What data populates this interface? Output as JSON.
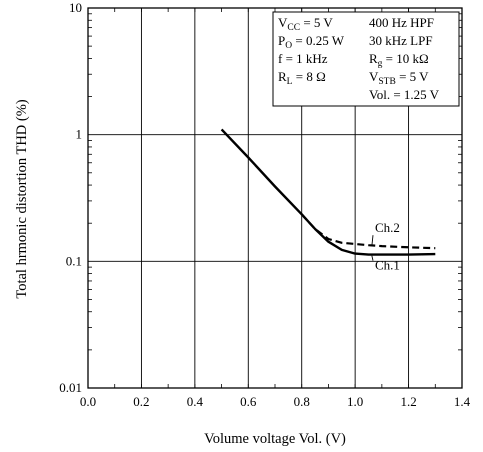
{
  "chart_data": {
    "type": "line",
    "xlabel": "Volume voltage  Vol.  (V)",
    "ylabel": "Total hrmonic distortion  THD  (%)",
    "xlim": [
      0.0,
      1.4
    ],
    "ylim": [
      0.01,
      10
    ],
    "yscale": "log",
    "grid": true,
    "x_ticks": [
      "0.0",
      "0.2",
      "0.4",
      "0.6",
      "0.8",
      "1.0",
      "1.2",
      "1.4"
    ],
    "y_ticks": [
      "0.01",
      "0.1",
      "1",
      "10"
    ],
    "conditions": {
      "left": [
        {
          "main": "V",
          "sub": "CC",
          "rest": " = 5 V"
        },
        {
          "main": "P",
          "sub": "O",
          "rest": " = 0.25 W"
        },
        {
          "main": "f = 1 kHz",
          "sub": "",
          "rest": ""
        },
        {
          "main": "R",
          "sub": "L",
          "rest": " = 8 Ω"
        }
      ],
      "right": [
        {
          "main": "400 Hz HPF",
          "sub": "",
          "rest": ""
        },
        {
          "main": "30 kHz LPF",
          "sub": "",
          "rest": ""
        },
        {
          "main": "R",
          "sub": "g",
          "rest": " = 10 kΩ"
        },
        {
          "main": "V",
          "sub": "STB",
          "rest": " = 5 V"
        },
        {
          "main": "Vol. = 1.25 V",
          "sub": "",
          "rest": ""
        }
      ]
    },
    "series": [
      {
        "name": "Ch.1",
        "style": "solid",
        "x": [
          0.5,
          0.6,
          0.7,
          0.8,
          0.85,
          0.9,
          0.95,
          1.0,
          1.05,
          1.1,
          1.2,
          1.3
        ],
        "y": [
          1.1,
          0.66,
          0.39,
          0.235,
          0.18,
          0.143,
          0.123,
          0.115,
          0.113,
          0.113,
          0.113,
          0.114
        ]
      },
      {
        "name": "Ch.2",
        "style": "dashed",
        "x": [
          0.8,
          0.85,
          0.9,
          0.95,
          1.0,
          1.05,
          1.1,
          1.2,
          1.3
        ],
        "y": [
          0.235,
          0.18,
          0.15,
          0.14,
          0.137,
          0.134,
          0.132,
          0.129,
          0.127
        ]
      }
    ]
  }
}
